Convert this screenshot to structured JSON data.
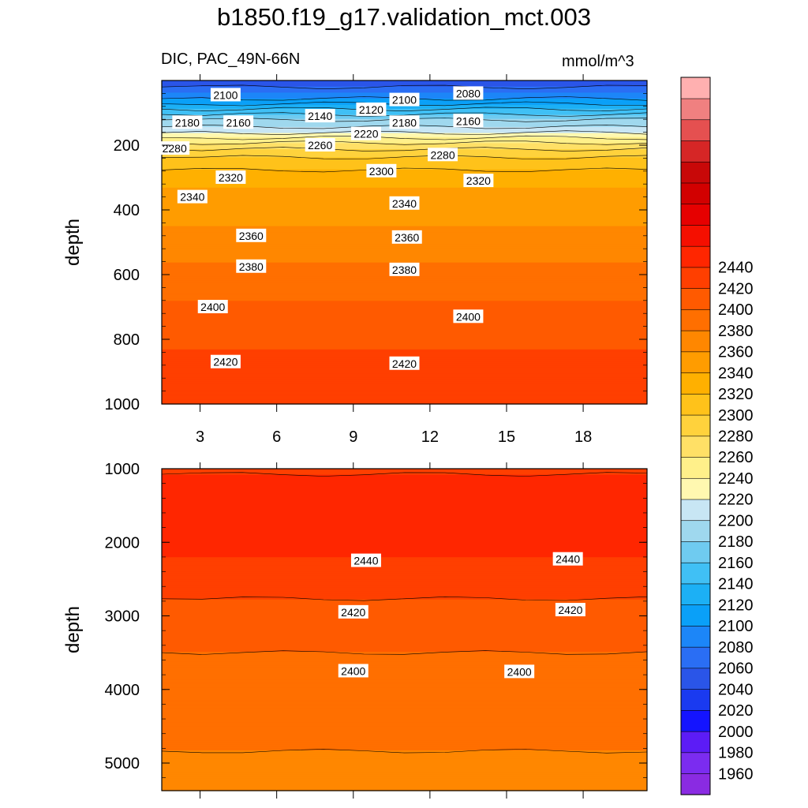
{
  "title": "b1850.f19_g17.validation_mct.003",
  "variable_label": "DIC, PAC_49N-66N",
  "units": "mmol/m^3",
  "chart_data": [
    {
      "type": "contour",
      "panel": "upper",
      "ylabel": "depth",
      "xlabel": "",
      "x_ticks": [
        3,
        6,
        9,
        12,
        15,
        18
      ],
      "x_tick_labels": [
        "3",
        "6",
        "9",
        "12",
        "15",
        "18"
      ],
      "xlim": [
        1.5,
        20.5
      ],
      "y_ticks": [
        200,
        400,
        600,
        800,
        1000
      ],
      "y_tick_labels": [
        "200",
        "400",
        "600",
        "800",
        "1000"
      ],
      "ylim": [
        0,
        1000
      ],
      "y_inverted": true,
      "depth_profile": [
        {
          "depth": 0,
          "value": 2040
        },
        {
          "depth": 40,
          "value": 2080
        },
        {
          "depth": 80,
          "value": 2130
        },
        {
          "depth": 130,
          "value": 2190
        },
        {
          "depth": 150,
          "value": 2205
        },
        {
          "depth": 200,
          "value": 2270
        },
        {
          "depth": 250,
          "value": 2310
        },
        {
          "depth": 330,
          "value": 2340
        },
        {
          "depth": 450,
          "value": 2360
        },
        {
          "depth": 560,
          "value": 2380
        },
        {
          "depth": 680,
          "value": 2400
        },
        {
          "depth": 830,
          "value": 2420
        },
        {
          "depth": 1000,
          "value": 2435
        }
      ],
      "contour_labels": [
        {
          "x": 4,
          "depth": 45,
          "text": "2100"
        },
        {
          "x": 13.5,
          "depth": 40,
          "text": "2080"
        },
        {
          "x": 11,
          "depth": 60,
          "text": "2100"
        },
        {
          "x": 9.7,
          "depth": 90,
          "text": "2120"
        },
        {
          "x": 7.7,
          "depth": 110,
          "text": "2140"
        },
        {
          "x": 2.5,
          "depth": 130,
          "text": "2180"
        },
        {
          "x": 4.5,
          "depth": 130,
          "text": "2160"
        },
        {
          "x": 11,
          "depth": 130,
          "text": "2180"
        },
        {
          "x": 13.5,
          "depth": 125,
          "text": "2160"
        },
        {
          "x": 9.5,
          "depth": 165,
          "text": "2220"
        },
        {
          "x": 7.7,
          "depth": 200,
          "text": "2260"
        },
        {
          "x": 2,
          "depth": 210,
          "text": "2280"
        },
        {
          "x": 12.5,
          "depth": 230,
          "text": "2280"
        },
        {
          "x": 10.1,
          "depth": 280,
          "text": "2300"
        },
        {
          "x": 4.2,
          "depth": 300,
          "text": "2320"
        },
        {
          "x": 13.9,
          "depth": 310,
          "text": "2320"
        },
        {
          "x": 2.7,
          "depth": 360,
          "text": "2340"
        },
        {
          "x": 11,
          "depth": 380,
          "text": "2340"
        },
        {
          "x": 5,
          "depth": 480,
          "text": "2360"
        },
        {
          "x": 11.1,
          "depth": 485,
          "text": "2360"
        },
        {
          "x": 5,
          "depth": 575,
          "text": "2380"
        },
        {
          "x": 11,
          "depth": 585,
          "text": "2380"
        },
        {
          "x": 3.5,
          "depth": 700,
          "text": "2400"
        },
        {
          "x": 13.5,
          "depth": 730,
          "text": "2400"
        },
        {
          "x": 4,
          "depth": 870,
          "text": "2420"
        },
        {
          "x": 11,
          "depth": 875,
          "text": "2420"
        }
      ]
    },
    {
      "type": "contour",
      "panel": "lower",
      "ylabel": "depth",
      "xlabel": "",
      "x_ticks": [
        3,
        6,
        9,
        12,
        15,
        18
      ],
      "xlim": [
        1.5,
        20.5
      ],
      "y_ticks": [
        1000,
        2000,
        3000,
        4000,
        5000
      ],
      "y_tick_labels": [
        "1000",
        "2000",
        "3000",
        "4000",
        "5000"
      ],
      "ylim": [
        1000,
        5375
      ],
      "y_inverted": true,
      "depth_profile": [
        {
          "depth": 1000,
          "value": 2435
        },
        {
          "depth": 1150,
          "value": 2445
        },
        {
          "depth": 1300,
          "value": 2455
        },
        {
          "depth": 1800,
          "value": 2455
        },
        {
          "depth": 2200,
          "value": 2440
        },
        {
          "depth": 2500,
          "value": 2430
        },
        {
          "depth": 2900,
          "value": 2415
        },
        {
          "depth": 3300,
          "value": 2405
        },
        {
          "depth": 3700,
          "value": 2395
        },
        {
          "depth": 4300,
          "value": 2382
        },
        {
          "depth": 5375,
          "value": 2378
        }
      ],
      "contour_labels": [
        {
          "x": 9.5,
          "depth": 2250,
          "text": "2440"
        },
        {
          "x": 17.4,
          "depth": 2230,
          "text": "2440"
        },
        {
          "x": 9,
          "depth": 2950,
          "text": "2420"
        },
        {
          "x": 17.5,
          "depth": 2920,
          "text": "2420"
        },
        {
          "x": 9,
          "depth": 3750,
          "text": "2400"
        },
        {
          "x": 15.5,
          "depth": 3760,
          "text": "2400"
        }
      ]
    }
  ],
  "colorbar": {
    "levels": [
      1960,
      1980,
      2000,
      2020,
      2040,
      2060,
      2080,
      2100,
      2120,
      2140,
      2160,
      2180,
      2200,
      2220,
      2240,
      2260,
      2280,
      2300,
      2320,
      2340,
      2360,
      2380,
      2400,
      2420,
      2440
    ],
    "labels": [
      "1960",
      "1980",
      "2000",
      "2020",
      "2040",
      "2060",
      "2080",
      "2100",
      "2120",
      "2140",
      "2160",
      "2180",
      "2200",
      "2220",
      "2240",
      "2260",
      "2280",
      "2300",
      "2320",
      "2340",
      "2360",
      "2380",
      "2400",
      "2420",
      "2440"
    ],
    "colors": [
      "#8a2be2",
      "#7b2cf0",
      "#5c1cf6",
      "#1414ff",
      "#1a3af0",
      "#2a55e8",
      "#2a6ef4",
      "#1c86f8",
      "#0aa0f8",
      "#1cb0f5",
      "#40c0f5",
      "#6fcbf0",
      "#9fd8ee",
      "#c8e6f4",
      "#fff8b0",
      "#fff08a",
      "#ffe066",
      "#ffd23c",
      "#ffc21a",
      "#ffb000",
      "#ff9c00",
      "#ff8700",
      "#ff6f00",
      "#ff5a00",
      "#ff3f00",
      "#ff2600",
      "#f50f00",
      "#e60000",
      "#d20000",
      "#c80808",
      "#d62626",
      "#e55050",
      "#f08080",
      "#ffb0b0"
    ]
  }
}
